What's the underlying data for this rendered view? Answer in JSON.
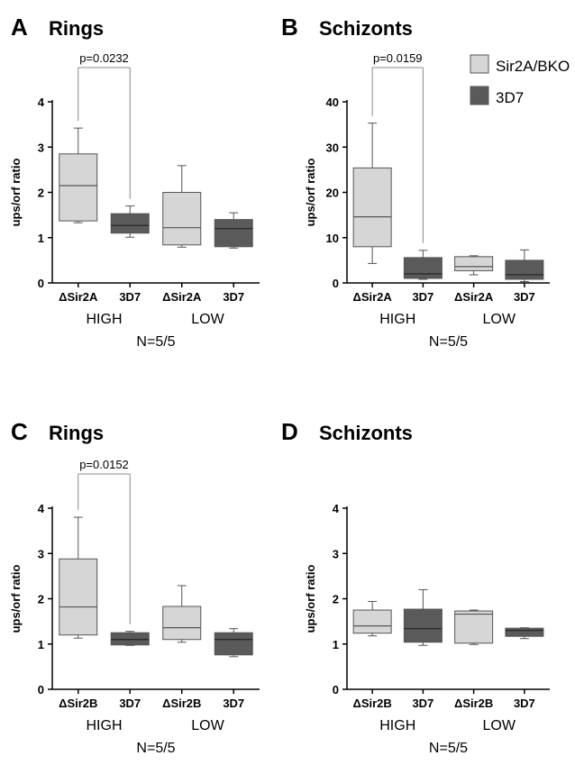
{
  "legend": {
    "items": [
      {
        "label": "Sir2A/BKO",
        "color": "#d6d6d6"
      },
      {
        "label": "3D7",
        "color": "#5a5a5a"
      }
    ]
  },
  "colors": {
    "light_box": "#d6d6d6",
    "dark_box": "#5a5a5a",
    "line": "#555555"
  },
  "chart_data": [
    {
      "panel_letter": "A",
      "title": "Rings",
      "type": "box",
      "ylabel": "ups/orf ratio",
      "ylim": [
        0,
        4
      ],
      "yticks": [
        "0",
        "1",
        "2",
        "3",
        "4"
      ],
      "categories": [
        "ΔSir2A",
        "3D7",
        "ΔSir2A",
        "3D7"
      ],
      "groups": [
        "HIGH",
        "LOW"
      ],
      "n_label": "N=5/5",
      "significance": {
        "label": "p=0.0232",
        "between": [
          0,
          1
        ]
      },
      "boxes": [
        {
          "min": 1.33,
          "q1": 1.37,
          "median": 2.15,
          "q3": 2.85,
          "max": 3.42,
          "fill": "light"
        },
        {
          "min": 1.01,
          "q1": 1.1,
          "median": 1.27,
          "q3": 1.53,
          "max": 1.7,
          "fill": "dark"
        },
        {
          "min": 0.79,
          "q1": 0.84,
          "median": 1.22,
          "q3": 2.0,
          "max": 2.59,
          "fill": "light"
        },
        {
          "min": 0.77,
          "q1": 0.8,
          "median": 1.2,
          "q3": 1.4,
          "max": 1.55,
          "fill": "dark"
        }
      ]
    },
    {
      "panel_letter": "B",
      "title": "Schizonts",
      "type": "box",
      "ylabel": "ups/orf ratio",
      "ylim": [
        0,
        40
      ],
      "yticks": [
        "0",
        "10",
        "20",
        "30",
        "40"
      ],
      "categories": [
        "ΔSir2A",
        "3D7",
        "ΔSir2A",
        "3D7"
      ],
      "groups": [
        "HIGH",
        "LOW"
      ],
      "n_label": "N=5/5",
      "significance": {
        "label": "p=0.0159",
        "between": [
          0,
          1
        ]
      },
      "boxes": [
        {
          "min": 4.3,
          "q1": 8.0,
          "median": 14.6,
          "q3": 25.4,
          "max": 35.3,
          "fill": "light"
        },
        {
          "min": 0.8,
          "q1": 1.0,
          "median": 2.0,
          "q3": 5.6,
          "max": 7.2,
          "fill": "dark"
        },
        {
          "min": 1.8,
          "q1": 2.7,
          "median": 3.6,
          "q3": 5.8,
          "max": 6.0,
          "fill": "light"
        },
        {
          "min": 0.3,
          "q1": 0.8,
          "median": 1.8,
          "q3": 5.0,
          "max": 7.3,
          "fill": "dark"
        }
      ]
    },
    {
      "panel_letter": "C",
      "title": "Rings",
      "type": "box",
      "ylabel": "ups/orf ratio",
      "ylim": [
        0,
        4
      ],
      "yticks": [
        "0",
        "1",
        "2",
        "3",
        "4"
      ],
      "categories": [
        "ΔSir2B",
        "3D7",
        "ΔSir2B",
        "3D7"
      ],
      "groups": [
        "HIGH",
        "LOW"
      ],
      "n_label": "N=5/5",
      "significance": {
        "label": "p=0.0152",
        "between": [
          0,
          1
        ]
      },
      "boxes": [
        {
          "min": 1.13,
          "q1": 1.2,
          "median": 1.82,
          "q3": 2.88,
          "max": 3.8,
          "fill": "light"
        },
        {
          "min": 0.97,
          "q1": 0.98,
          "median": 1.1,
          "q3": 1.25,
          "max": 1.28,
          "fill": "dark"
        },
        {
          "min": 1.04,
          "q1": 1.1,
          "median": 1.36,
          "q3": 1.83,
          "max": 2.29,
          "fill": "light"
        },
        {
          "min": 0.72,
          "q1": 0.76,
          "median": 1.1,
          "q3": 1.25,
          "max": 1.34,
          "fill": "dark"
        }
      ]
    },
    {
      "panel_letter": "D",
      "title": "Schizonts",
      "type": "box",
      "ylabel": "ups/orf ratio",
      "ylim": [
        0,
        4
      ],
      "yticks": [
        "0",
        "1",
        "2",
        "3",
        "4"
      ],
      "categories": [
        "ΔSir2B",
        "3D7",
        "ΔSir2B",
        "3D7"
      ],
      "groups": [
        "HIGH",
        "LOW"
      ],
      "n_label": "N=5/5",
      "significance": null,
      "boxes": [
        {
          "min": 1.18,
          "q1": 1.24,
          "median": 1.4,
          "q3": 1.75,
          "max": 1.94,
          "fill": "light"
        },
        {
          "min": 0.97,
          "q1": 1.04,
          "median": 1.34,
          "q3": 1.77,
          "max": 2.2,
          "fill": "dark"
        },
        {
          "min": 0.99,
          "q1": 1.02,
          "median": 1.66,
          "q3": 1.73,
          "max": 1.75,
          "fill": "light"
        },
        {
          "min": 1.12,
          "q1": 1.17,
          "median": 1.3,
          "q3": 1.35,
          "max": 1.36,
          "fill": "dark"
        }
      ]
    }
  ]
}
